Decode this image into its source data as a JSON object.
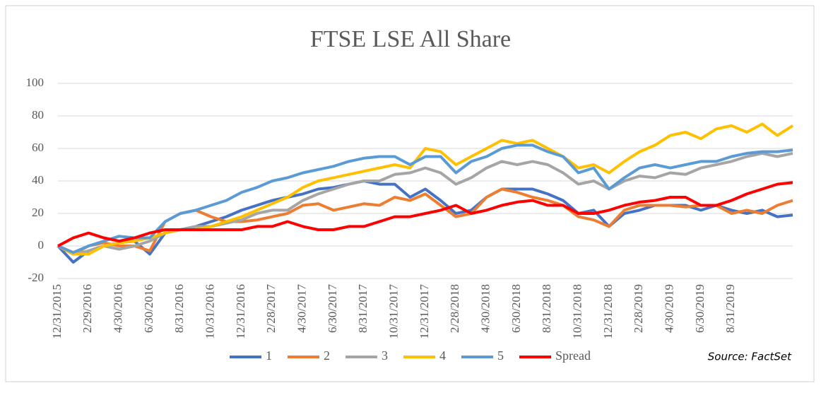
{
  "chart_data": {
    "type": "line",
    "title": "FTSE LSE All Share",
    "source": "Source: FactSet",
    "categories": [
      "12/31/2015",
      null,
      "2/29/2016",
      null,
      "4/30/2016",
      null,
      "6/30/2016",
      null,
      "8/31/2016",
      null,
      "10/31/2016",
      null,
      "12/31/2016",
      null,
      "2/28/2017",
      null,
      "4/30/2017",
      null,
      "6/30/2017",
      null,
      "8/31/2017",
      null,
      "10/31/2017",
      null,
      "12/31/2017",
      null,
      "2/28/2018",
      null,
      "4/30/2018",
      null,
      "6/30/2018",
      null,
      "8/31/2018",
      null,
      "10/31/2018",
      null,
      "12/31/2018",
      null,
      "2/28/2019",
      null,
      "4/30/2019",
      null,
      "6/30/2019",
      null,
      "8/31/2019",
      null,
      null,
      null,
      null
    ],
    "series": [
      {
        "name": "1",
        "color": "#4472c4",
        "values": [
          0,
          -10,
          -3,
          0,
          2,
          3,
          -5,
          8,
          10,
          12,
          15,
          18,
          22,
          25,
          28,
          30,
          32,
          35,
          36,
          38,
          40,
          38,
          38,
          30,
          35,
          28,
          20,
          22,
          30,
          35,
          35,
          35,
          32,
          28,
          20,
          22,
          12,
          20,
          22,
          25,
          25,
          25,
          22,
          25,
          22,
          20,
          22,
          18,
          19
        ]
      },
      {
        "name": "2",
        "color": "#ed7d31",
        "values": [
          0,
          -5,
          0,
          2,
          0,
          0,
          -3,
          15,
          20,
          22,
          18,
          15,
          15,
          16,
          18,
          20,
          25,
          26,
          22,
          24,
          26,
          25,
          30,
          28,
          32,
          25,
          18,
          20,
          30,
          35,
          33,
          30,
          28,
          25,
          18,
          16,
          12,
          22,
          25,
          25,
          25,
          24,
          25,
          25,
          20,
          22,
          20,
          25,
          28
        ]
      },
      {
        "name": "3",
        "color": "#a5a5a5",
        "values": [
          0,
          -5,
          -3,
          0,
          -2,
          0,
          3,
          8,
          10,
          12,
          12,
          14,
          16,
          20,
          22,
          22,
          28,
          32,
          35,
          38,
          40,
          40,
          44,
          45,
          48,
          45,
          38,
          42,
          48,
          52,
          50,
          52,
          50,
          45,
          38,
          40,
          35,
          40,
          43,
          42,
          45,
          44,
          48,
          50,
          52,
          55,
          57,
          55,
          57
        ]
      },
      {
        "name": "4",
        "color": "#ffc000",
        "values": [
          0,
          -5,
          -5,
          0,
          2,
          3,
          5,
          8,
          10,
          10,
          12,
          15,
          18,
          22,
          26,
          30,
          36,
          40,
          42,
          44,
          46,
          48,
          50,
          48,
          60,
          58,
          50,
          55,
          60,
          65,
          63,
          65,
          60,
          55,
          48,
          50,
          45,
          52,
          58,
          62,
          68,
          70,
          66,
          72,
          74,
          70,
          75,
          68,
          74
        ]
      },
      {
        "name": "5",
        "color": "#5b9bd5",
        "values": [
          0,
          -4,
          0,
          3,
          6,
          5,
          5,
          15,
          20,
          22,
          25,
          28,
          33,
          36,
          40,
          42,
          45,
          47,
          49,
          52,
          54,
          55,
          55,
          50,
          55,
          55,
          45,
          52,
          55,
          60,
          62,
          62,
          58,
          55,
          45,
          48,
          35,
          42,
          48,
          50,
          48,
          50,
          52,
          52,
          55,
          57,
          58,
          58,
          59
        ]
      },
      {
        "name": "Spread",
        "color": "#ff0000",
        "values": [
          0,
          5,
          8,
          5,
          3,
          5,
          8,
          10,
          10,
          10,
          10,
          10,
          10,
          12,
          12,
          15,
          12,
          10,
          10,
          12,
          12,
          15,
          18,
          18,
          20,
          22,
          25,
          20,
          22,
          25,
          27,
          28,
          25,
          25,
          20,
          20,
          22,
          25,
          27,
          28,
          30,
          30,
          25,
          25,
          28,
          32,
          35,
          38,
          39
        ]
      }
    ],
    "ylim": [
      -20,
      100
    ],
    "yticks": [
      -20,
      0,
      20,
      40,
      60,
      80,
      100
    ],
    "grid": true,
    "legend": "bottom"
  }
}
